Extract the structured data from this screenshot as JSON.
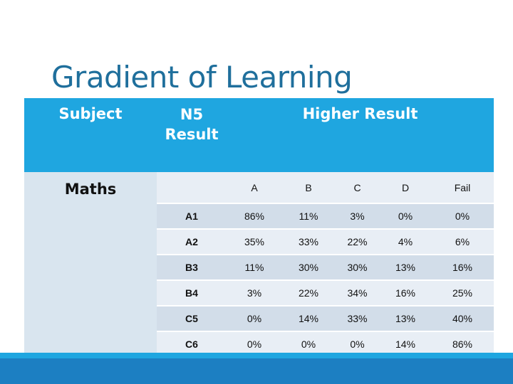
{
  "slide": {
    "title": "Gradient of Learning"
  },
  "table": {
    "header_subject": "Subject",
    "header_n5_line1": "N5",
    "header_n5_line2": "Result",
    "header_higher": "Higher Result",
    "subject": "Maths",
    "grade_columns": [
      "A",
      "B",
      "C",
      "D",
      "Fail"
    ],
    "rows": [
      {
        "n5": "A1",
        "values": [
          "86%",
          "11%",
          "3%",
          "0%",
          "0%"
        ]
      },
      {
        "n5": "A2",
        "values": [
          "35%",
          "33%",
          "22%",
          "4%",
          "6%"
        ]
      },
      {
        "n5": "B3",
        "values": [
          "11%",
          "30%",
          "30%",
          "13%",
          "16%"
        ]
      },
      {
        "n5": "B4",
        "values": [
          "3%",
          "22%",
          "34%",
          "16%",
          "25%"
        ]
      },
      {
        "n5": "C5",
        "values": [
          "0%",
          "14%",
          "33%",
          "13%",
          "40%"
        ]
      },
      {
        "n5": "C6",
        "values": [
          "0%",
          "0%",
          "0%",
          "14%",
          "86%"
        ]
      }
    ]
  },
  "colors": {
    "title": "#1f6f9c",
    "header_bg": "#1fa6e0",
    "row_light": "#e8eef5",
    "row_dark": "#d2dde9",
    "bottom_bar": "#1c7fc2"
  }
}
